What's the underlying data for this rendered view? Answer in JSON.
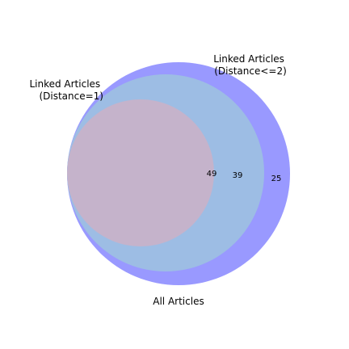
{
  "diagram": {
    "type": "nested-venn",
    "sets": [
      {
        "name_lines": [
          "All Articles"
        ],
        "count": "25",
        "color": "#9999ff"
      },
      {
        "name_lines": [
          "Linked Articles",
          "(Distance<=2)"
        ],
        "count": "39",
        "color": "#9dbde4"
      },
      {
        "name_lines": [
          "Linked Articles",
          "(Distance=1)"
        ],
        "count": "49",
        "color": "#c5b3cb"
      }
    ]
  }
}
